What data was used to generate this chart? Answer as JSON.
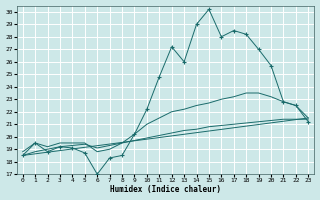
{
  "xlabel": "Humidex (Indice chaleur)",
  "xlim": [
    -0.5,
    23.5
  ],
  "ylim": [
    17,
    30.5
  ],
  "yticks": [
    17,
    18,
    19,
    20,
    21,
    22,
    23,
    24,
    25,
    26,
    27,
    28,
    29,
    30
  ],
  "xticks": [
    0,
    1,
    2,
    3,
    4,
    5,
    6,
    7,
    8,
    9,
    10,
    11,
    12,
    13,
    14,
    15,
    16,
    17,
    18,
    19,
    20,
    21,
    22,
    23
  ],
  "bg_color": "#cde8e8",
  "line_color": "#1a6b6b",
  "grid_color": "#b8d8d8",
  "line1_x": [
    0,
    1,
    2,
    3,
    4,
    5,
    6,
    7,
    8,
    9,
    10,
    11,
    12,
    13,
    14,
    15,
    16,
    17,
    18,
    19,
    20,
    21,
    22,
    23
  ],
  "line1_y": [
    18.5,
    19.5,
    18.8,
    19.2,
    19.1,
    18.7,
    17.0,
    18.3,
    18.5,
    20.2,
    22.2,
    24.8,
    27.2,
    26.0,
    29.0,
    30.2,
    28.0,
    28.5,
    28.2,
    27.0,
    25.7,
    22.8,
    22.5,
    21.2
  ],
  "line2_x": [
    0,
    1,
    2,
    3,
    4,
    5,
    6,
    7,
    8,
    9,
    10,
    11,
    12,
    13,
    14,
    15,
    16,
    17,
    18,
    19,
    20,
    21,
    22,
    23
  ],
  "line2_y": [
    18.8,
    19.5,
    19.2,
    19.5,
    19.5,
    19.5,
    18.8,
    19.0,
    19.5,
    20.2,
    21.0,
    21.5,
    22.0,
    22.2,
    22.5,
    22.7,
    23.0,
    23.2,
    23.5,
    23.5,
    23.2,
    22.8,
    22.5,
    21.5
  ],
  "line3_x": [
    0,
    1,
    2,
    3,
    4,
    5,
    6,
    7,
    8,
    9,
    10,
    11,
    12,
    13,
    14,
    15,
    16,
    17,
    18,
    19,
    20,
    21,
    22,
    23
  ],
  "line3_y": [
    18.5,
    18.8,
    19.0,
    19.2,
    19.3,
    19.4,
    19.1,
    19.3,
    19.5,
    19.7,
    19.9,
    20.1,
    20.3,
    20.5,
    20.6,
    20.8,
    20.9,
    21.0,
    21.1,
    21.2,
    21.3,
    21.4,
    21.4,
    21.4
  ],
  "line4_x": [
    0,
    23
  ],
  "line4_y": [
    18.5,
    21.5
  ]
}
